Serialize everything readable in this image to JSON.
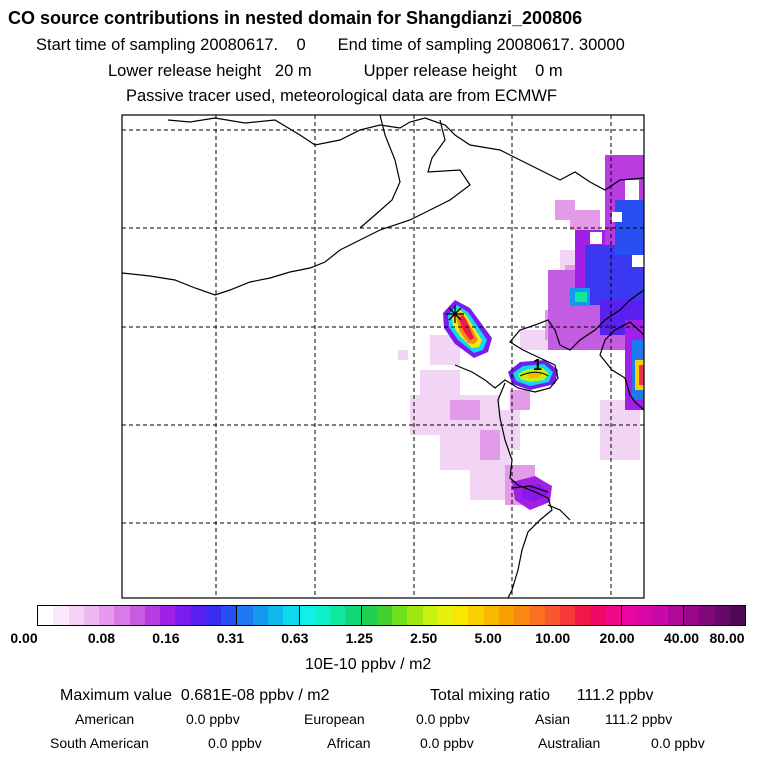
{
  "header": {
    "title": "CO  source contributions in nested domain for Shangdianzi_200806",
    "start_label": "Start time of sampling 20080617.    0",
    "end_label": "End time of sampling 20080617. 30000",
    "lower_label": "Lower release height   20 m",
    "upper_label": "Upper release height    0 m",
    "tracer_note": "Passive tracer used, meteorological data are from ECMWF"
  },
  "map": {
    "receptor_marker": "+",
    "contour_label": "1"
  },
  "colorbar": {
    "ticks": [
      "0.00",
      "0.08",
      "0.16",
      "0.31",
      "0.63",
      "1.25",
      "2.50",
      "5.00",
      "10.00",
      "20.00",
      "40.00",
      "80.00"
    ],
    "unit": "10E-10 ppbv / m2",
    "colors": [
      "#ffffff",
      "#fbe8fb",
      "#f5d2f5",
      "#eeb8f0",
      "#e69aee",
      "#d77ce6",
      "#c95ae2",
      "#b83ce0",
      "#a020e6",
      "#7a1cf0",
      "#5a20f0",
      "#3a2cf0",
      "#2850f0",
      "#1e78f0",
      "#1498f0",
      "#10b8f0",
      "#10d8f0",
      "#10f0e8",
      "#10f0c8",
      "#10e8a0",
      "#10d878",
      "#20d050",
      "#40d030",
      "#70e020",
      "#a0e810",
      "#c8f010",
      "#e8f010",
      "#f8e800",
      "#f8d000",
      "#f8b800",
      "#f8a000",
      "#f88810",
      "#f87020",
      "#f85830",
      "#f83838",
      "#f01848",
      "#f00868",
      "#f00888",
      "#e808a0",
      "#d808a8",
      "#c808a8",
      "#b00898",
      "#980888",
      "#800878",
      "#680868",
      "#500858"
    ]
  },
  "summary": {
    "max_label": "Maximum value  0.681E-08 ppbv / m2",
    "total_label": "Total mixing ratio      111.2 ppbv",
    "regions": [
      {
        "name": "American",
        "value": "0.0 ppbv"
      },
      {
        "name": "European",
        "value": "0.0 ppbv"
      },
      {
        "name": "Asian",
        "value": "111.2 ppbv"
      },
      {
        "name": "South American",
        "value": "0.0 ppbv"
      },
      {
        "name": "African",
        "value": "0.0 ppbv"
      },
      {
        "name": "Australian",
        "value": "0.0 ppbv"
      }
    ]
  }
}
